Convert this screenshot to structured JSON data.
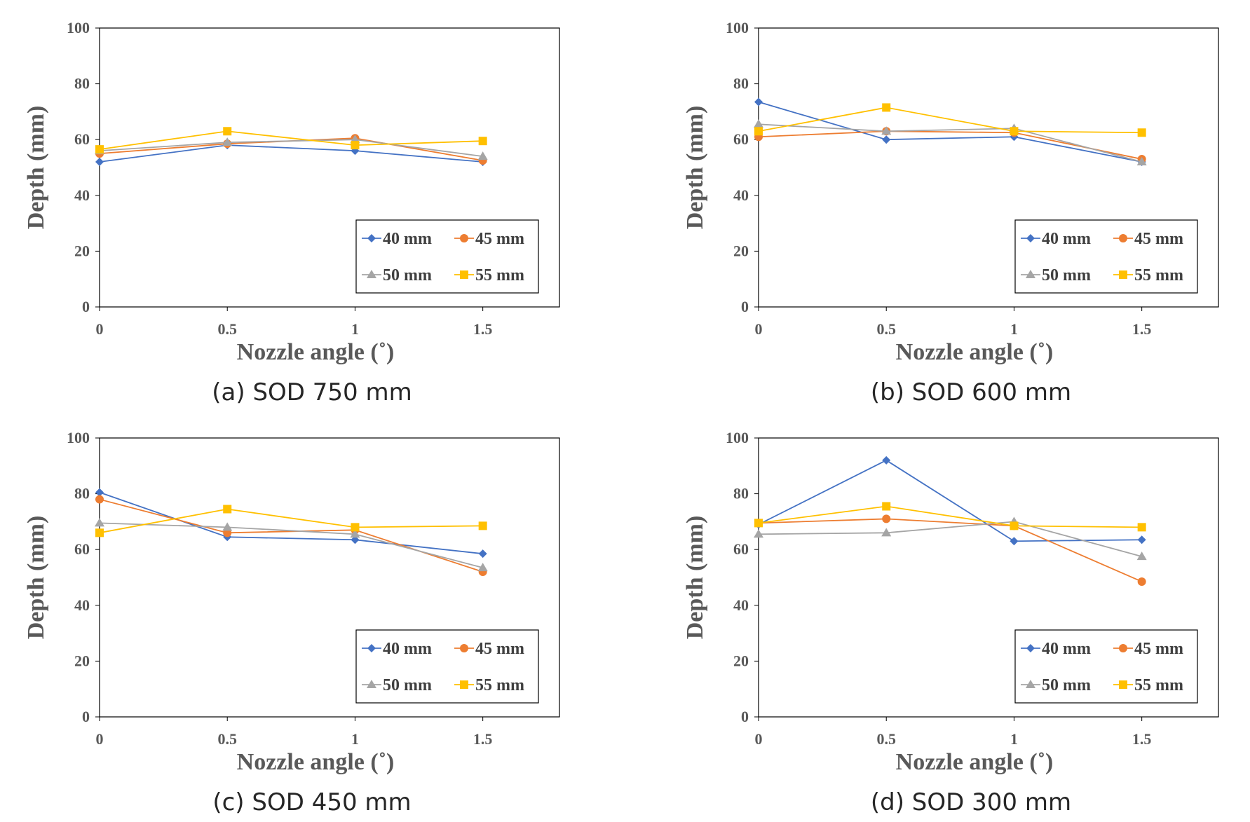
{
  "colors": {
    "40 mm": "#4472C4",
    "45 mm": "#ED7D31",
    "50 mm": "#A5A5A5",
    "55 mm": "#FFC000"
  },
  "chart_data": [
    {
      "type": "line",
      "caption": "(a) SOD 750 mm",
      "xlabel": "Nozzle angle (˚)",
      "ylabel": "Depth (mm)",
      "x": [
        0,
        0.5,
        1,
        1.5
      ],
      "x_tick_labels": [
        "0",
        "0.5",
        "1",
        "1.5"
      ],
      "y_tick_labels": [
        "0",
        "20",
        "40",
        "60",
        "80",
        "100"
      ],
      "xlim": [
        0,
        1.8
      ],
      "ylim": [
        0,
        100
      ],
      "legend_position": "bottom-right",
      "series": [
        {
          "name": "40 mm",
          "marker": "diamond",
          "values": [
            52,
            58,
            56,
            52
          ]
        },
        {
          "name": "45 mm",
          "marker": "circle",
          "values": [
            55,
            58.5,
            60.5,
            52.5
          ]
        },
        {
          "name": "50 mm",
          "marker": "triangle",
          "values": [
            56,
            59,
            60,
            54
          ]
        },
        {
          "name": "55 mm",
          "marker": "square",
          "values": [
            56.5,
            63,
            58,
            59.5
          ]
        }
      ]
    },
    {
      "type": "line",
      "caption": "(b) SOD 600 mm",
      "xlabel": "Nozzle angle (˚)",
      "ylabel": "Depth (mm)",
      "x": [
        0,
        0.5,
        1,
        1.5
      ],
      "x_tick_labels": [
        "0",
        "0.5",
        "1",
        "1.5"
      ],
      "y_tick_labels": [
        "0",
        "20",
        "40",
        "60",
        "80",
        "100"
      ],
      "xlim": [
        0,
        1.8
      ],
      "ylim": [
        0,
        100
      ],
      "legend_position": "bottom-right",
      "series": [
        {
          "name": "40 mm",
          "marker": "diamond",
          "values": [
            73.5,
            60,
            61,
            52
          ]
        },
        {
          "name": "45 mm",
          "marker": "circle",
          "values": [
            61,
            63,
            62.5,
            53
          ]
        },
        {
          "name": "50 mm",
          "marker": "triangle",
          "values": [
            65.5,
            63,
            64,
            52
          ]
        },
        {
          "name": "55 mm",
          "marker": "square",
          "values": [
            63,
            71.5,
            63,
            62.5
          ]
        }
      ]
    },
    {
      "type": "line",
      "caption": "(c) SOD 450 mm",
      "xlabel": "Nozzle angle (˚)",
      "ylabel": "Depth (mm)",
      "x": [
        0,
        0.5,
        1,
        1.5
      ],
      "x_tick_labels": [
        "0",
        "0.5",
        "1",
        "1.5"
      ],
      "y_tick_labels": [
        "0",
        "20",
        "40",
        "60",
        "80",
        "100"
      ],
      "xlim": [
        0,
        1.8
      ],
      "ylim": [
        0,
        100
      ],
      "legend_position": "bottom-right",
      "series": [
        {
          "name": "40 mm",
          "marker": "diamond",
          "values": [
            80.5,
            64.5,
            63.5,
            58.5
          ]
        },
        {
          "name": "45 mm",
          "marker": "circle",
          "values": [
            78,
            66,
            67,
            52
          ]
        },
        {
          "name": "50 mm",
          "marker": "triangle",
          "values": [
            69.5,
            68,
            65.5,
            53.5
          ]
        },
        {
          "name": "55 mm",
          "marker": "square",
          "values": [
            66,
            74.5,
            68,
            68.5
          ]
        }
      ]
    },
    {
      "type": "line",
      "caption": "(d) SOD 300 mm",
      "xlabel": "Nozzle angle (˚)",
      "ylabel": "Depth (mm)",
      "x": [
        0,
        0.5,
        1,
        1.5
      ],
      "x_tick_labels": [
        "0",
        "0.5",
        "1",
        "1.5"
      ],
      "y_tick_labels": [
        "0",
        "20",
        "40",
        "60",
        "80",
        "100"
      ],
      "xlim": [
        0,
        1.8
      ],
      "ylim": [
        0,
        100
      ],
      "legend_position": "bottom-right",
      "series": [
        {
          "name": "40 mm",
          "marker": "diamond",
          "values": [
            69,
            92,
            63,
            63.5
          ]
        },
        {
          "name": "45 mm",
          "marker": "circle",
          "values": [
            69.5,
            71,
            68.5,
            48.5
          ]
        },
        {
          "name": "50 mm",
          "marker": "triangle",
          "values": [
            65.5,
            66,
            70,
            57.5
          ]
        },
        {
          "name": "55 mm",
          "marker": "square",
          "values": [
            69.5,
            75.5,
            68.5,
            68
          ]
        }
      ]
    }
  ]
}
